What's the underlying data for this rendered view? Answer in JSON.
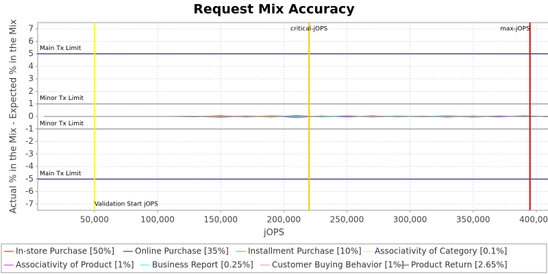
{
  "chart_data": {
    "type": "line",
    "title": "Request Mix Accuracy",
    "x_label": "jOPS",
    "y_label": "Actual % in the Mix - Expected % in the Mix",
    "xlim": [
      5000,
      412000
    ],
    "xticks": [
      {
        "value": 50000,
        "label": "50,000"
      },
      {
        "value": 100000,
        "label": "100,000"
      },
      {
        "value": 150000,
        "label": "150,000"
      },
      {
        "value": 200000,
        "label": "200,000"
      },
      {
        "value": 250000,
        "label": "250,000"
      },
      {
        "value": 300000,
        "label": "300,000"
      },
      {
        "value": 350000,
        "label": "350,000"
      },
      {
        "value": 400000,
        "label": "400,000"
      }
    ],
    "ylim": [
      -7.5,
      7.5
    ],
    "yticks": [
      -7,
      -6,
      -5,
      -4,
      -3,
      -2,
      -1,
      0,
      1,
      2,
      3,
      4,
      5,
      6,
      7
    ],
    "grid": true,
    "limits": [
      {
        "label": "Main Tx Limit",
        "value": 5,
        "color": "#000066"
      },
      {
        "label": "Minor Tx Limit",
        "value": 1,
        "color": "#808080"
      },
      {
        "label": "Minor Tx Limit",
        "value": -1,
        "color": "#808080"
      },
      {
        "label": "Main Tx Limit",
        "value": -5,
        "color": "#000066"
      }
    ],
    "markers": [
      {
        "label": "Validation Start jOPS",
        "value": 50000,
        "color": "#ffff00"
      },
      {
        "label": "critical-jOPS",
        "value": 220000,
        "color": "#ffc800"
      },
      {
        "label": "max-jOPS",
        "value": 395000,
        "color": "#e00000"
      }
    ],
    "x": [
      10000,
      30000,
      50000,
      70000,
      90000,
      110000,
      130000,
      150000,
      170000,
      190000,
      210000,
      230000,
      250000,
      270000,
      290000,
      310000,
      330000,
      350000,
      370000,
      390000,
      410000
    ],
    "series": [
      {
        "name": "In-store Purchase [50%]",
        "color": "#ff5555",
        "values": [
          0,
          0,
          0,
          0,
          0,
          0,
          0.02,
          -0.08,
          0.05,
          -0.06,
          0.08,
          -0.04,
          0.06,
          -0.05,
          0.04,
          -0.03,
          0.07,
          -0.06,
          0.05,
          -0.04,
          0.03
        ]
      },
      {
        "name": "Online Purchase [35%]",
        "color": "#5555ff",
        "values": [
          0,
          0,
          0,
          0,
          0,
          0,
          -0.02,
          0.06,
          -0.05,
          0.05,
          -0.1,
          0.05,
          -0.05,
          0.06,
          -0.04,
          0.04,
          -0.06,
          0.05,
          -0.04,
          0.05,
          -0.02
        ]
      },
      {
        "name": "Installment Purchase [10%]",
        "color": "#55ff55",
        "values": [
          0,
          0,
          0,
          0,
          0,
          0,
          0.01,
          0.02,
          -0.03,
          0.04,
          0.02,
          -0.03,
          0.03,
          -0.02,
          0.03,
          0.02,
          -0.03,
          0.02,
          0.03,
          -0.02,
          0.01
        ]
      },
      {
        "name": "Associativity of Category [0.1%]",
        "color": "#ffff55",
        "values": [
          0,
          0,
          0,
          0,
          0,
          0,
          0,
          0.01,
          0,
          -0.01,
          0.01,
          0,
          0.01,
          0,
          -0.01,
          0.01,
          0,
          0,
          0.01,
          0,
          0
        ]
      },
      {
        "name": "Associativity of Product [1%]",
        "color": "#ff55ff",
        "values": [
          0,
          0,
          0,
          0,
          0,
          0,
          0.01,
          -0.02,
          0.02,
          0.01,
          -0.02,
          0.02,
          -0.01,
          0.02,
          0.01,
          -0.02,
          0.01,
          0.02,
          -0.01,
          0.01,
          0
        ]
      },
      {
        "name": "Business Report [0.25%]",
        "color": "#55ffff",
        "values": [
          0,
          0,
          0,
          0,
          0,
          0,
          0,
          0.02,
          -0.04,
          0.08,
          -0.03,
          0.02,
          0.04,
          -0.03,
          0.05,
          -0.02,
          0.06,
          -0.04,
          0.03,
          -0.02,
          0.02
        ]
      },
      {
        "name": "Customer Buying Behavior [1%]",
        "color": "#ffafaf",
        "values": [
          0,
          0,
          0,
          0,
          0,
          0,
          0.01,
          -0.03,
          0.07,
          -0.02,
          0.03,
          -0.02,
          0.02,
          0.03,
          -0.02,
          0.02,
          -0.03,
          0.02,
          0.04,
          -0.02,
          0.01
        ]
      },
      {
        "name": "Product Return [2.65%]",
        "color": "#808080",
        "values": [
          0,
          0,
          0,
          0,
          0,
          0,
          -0.01,
          0.02,
          -0.02,
          0.01,
          0.02,
          -0.01,
          0.02,
          -0.02,
          0.01,
          -0.01,
          0.02,
          -0.01,
          0.01,
          0.02,
          -0.01
        ]
      }
    ]
  }
}
